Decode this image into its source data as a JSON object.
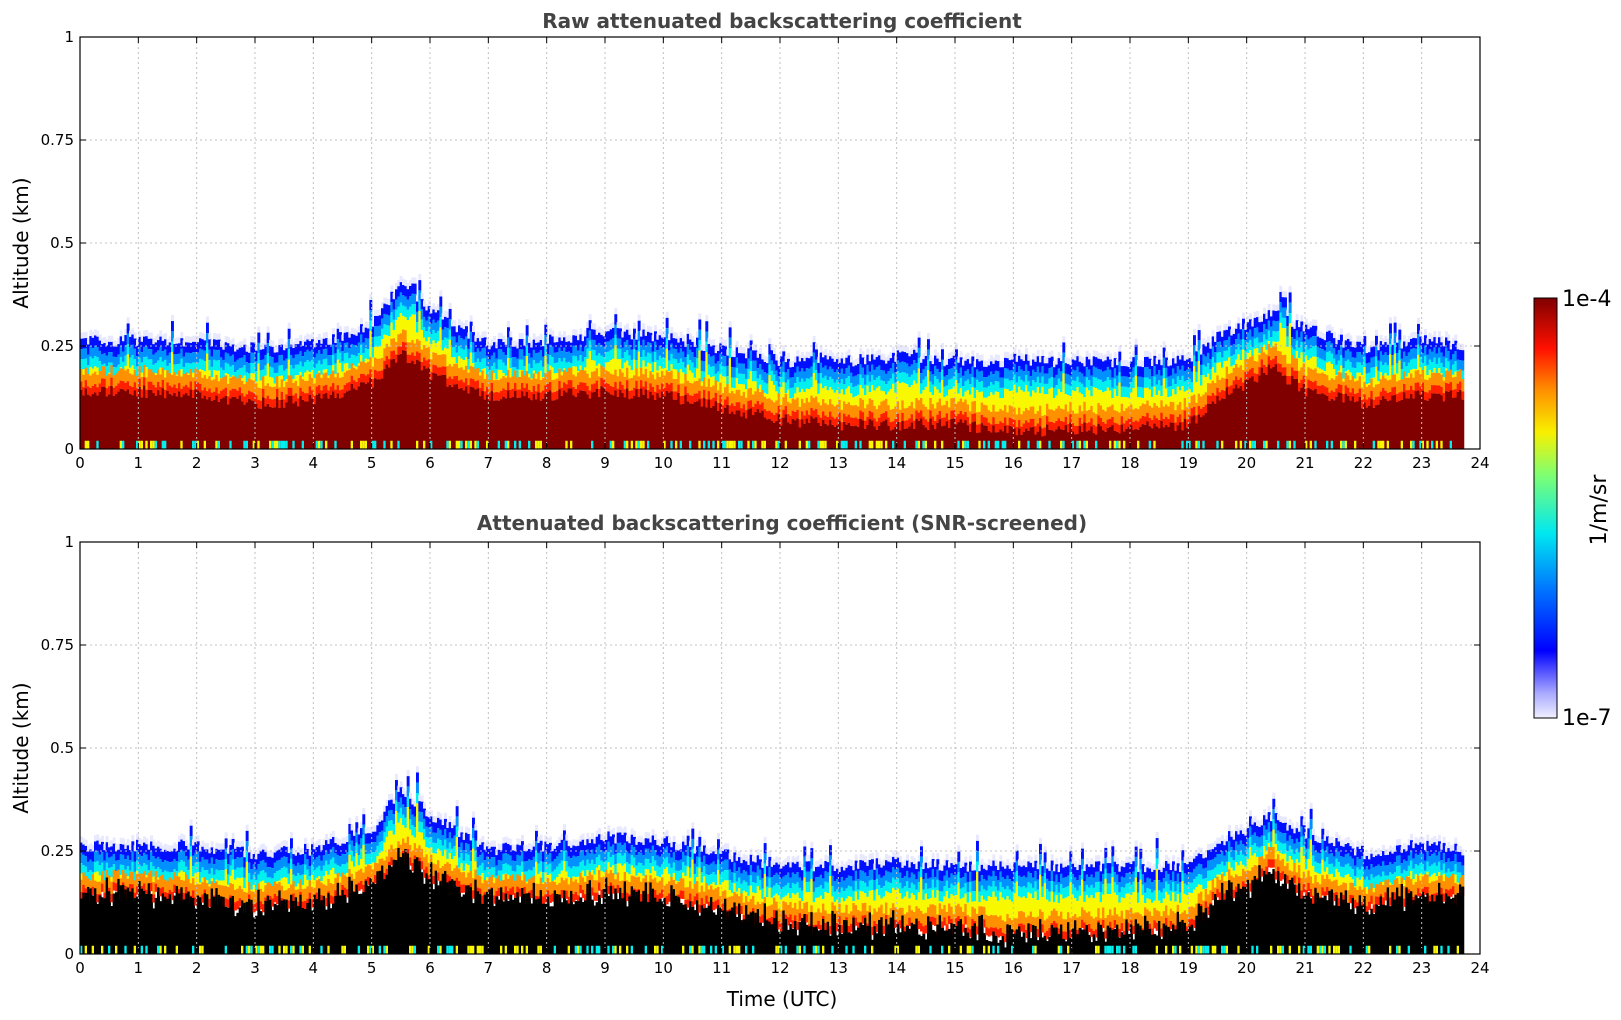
{
  "colors": {
    "deep_red": "#800000",
    "red": "#ff2000",
    "orange": "#ff9000",
    "yellow": "#f8f800",
    "cyan": "#00f0f0",
    "sky": "#0090ff",
    "blue": "#0010ff",
    "pale": "#e8e8ff",
    "black": "#000000",
    "grid": "#c0c0c0",
    "title_text": "#444444"
  },
  "chart_data": [
    {
      "type": "heatmap",
      "title": "Raw attenuated backscattering coefficient",
      "xlabel": "",
      "ylabel": "Altitude (km)",
      "xlim": [
        0,
        24
      ],
      "ylim": [
        0,
        1
      ],
      "x_ticks": [
        "0",
        "1",
        "2",
        "3",
        "4",
        "5",
        "6",
        "7",
        "8",
        "9",
        "10",
        "11",
        "12",
        "13",
        "14",
        "15",
        "16",
        "17",
        "18",
        "19",
        "20",
        "21",
        "22",
        "23",
        "24"
      ],
      "y_ticks": [
        "0",
        "0.25",
        "0.5",
        "0.75",
        "1"
      ],
      "data_end_hour": 23.7,
      "profile_hours": [
        0,
        1,
        2,
        3,
        4,
        5,
        5.5,
        6,
        7,
        8,
        9,
        10,
        11,
        12,
        13,
        14,
        15,
        16,
        17,
        18,
        19,
        19.5,
        20,
        20.4,
        21,
        22,
        23,
        23.7
      ],
      "signal_top_km": [
        0.26,
        0.26,
        0.26,
        0.24,
        0.25,
        0.3,
        0.4,
        0.33,
        0.25,
        0.26,
        0.28,
        0.27,
        0.24,
        0.21,
        0.21,
        0.22,
        0.21,
        0.21,
        0.21,
        0.21,
        0.21,
        0.27,
        0.3,
        0.33,
        0.29,
        0.24,
        0.26,
        0.25
      ],
      "saturation_top_km": [
        0.16,
        0.16,
        0.15,
        0.13,
        0.14,
        0.18,
        0.25,
        0.2,
        0.15,
        0.15,
        0.16,
        0.15,
        0.12,
        0.09,
        0.08,
        0.08,
        0.08,
        0.06,
        0.07,
        0.07,
        0.08,
        0.15,
        0.18,
        0.22,
        0.16,
        0.13,
        0.15,
        0.15
      ],
      "grid": true,
      "colormap": "jet"
    },
    {
      "type": "heatmap",
      "title": "Attenuated backscattering coefficient (SNR-screened)",
      "xlabel": "Time (UTC)",
      "ylabel": "Altitude (km)",
      "xlim": [
        0,
        24
      ],
      "ylim": [
        0,
        1
      ],
      "x_ticks": [
        "0",
        "1",
        "2",
        "3",
        "4",
        "5",
        "6",
        "7",
        "8",
        "9",
        "10",
        "11",
        "12",
        "13",
        "14",
        "15",
        "16",
        "17",
        "18",
        "19",
        "20",
        "21",
        "22",
        "23",
        "24"
      ],
      "y_ticks": [
        "0",
        "0.25",
        "0.5",
        "0.75",
        "1"
      ],
      "data_end_hour": 23.7,
      "screened_fill": "black",
      "grid": true,
      "colormap": "jet"
    }
  ],
  "colorbar": {
    "max_label": "1e-4",
    "min_label": "1e-7",
    "unit_label": "1/m/sr"
  }
}
